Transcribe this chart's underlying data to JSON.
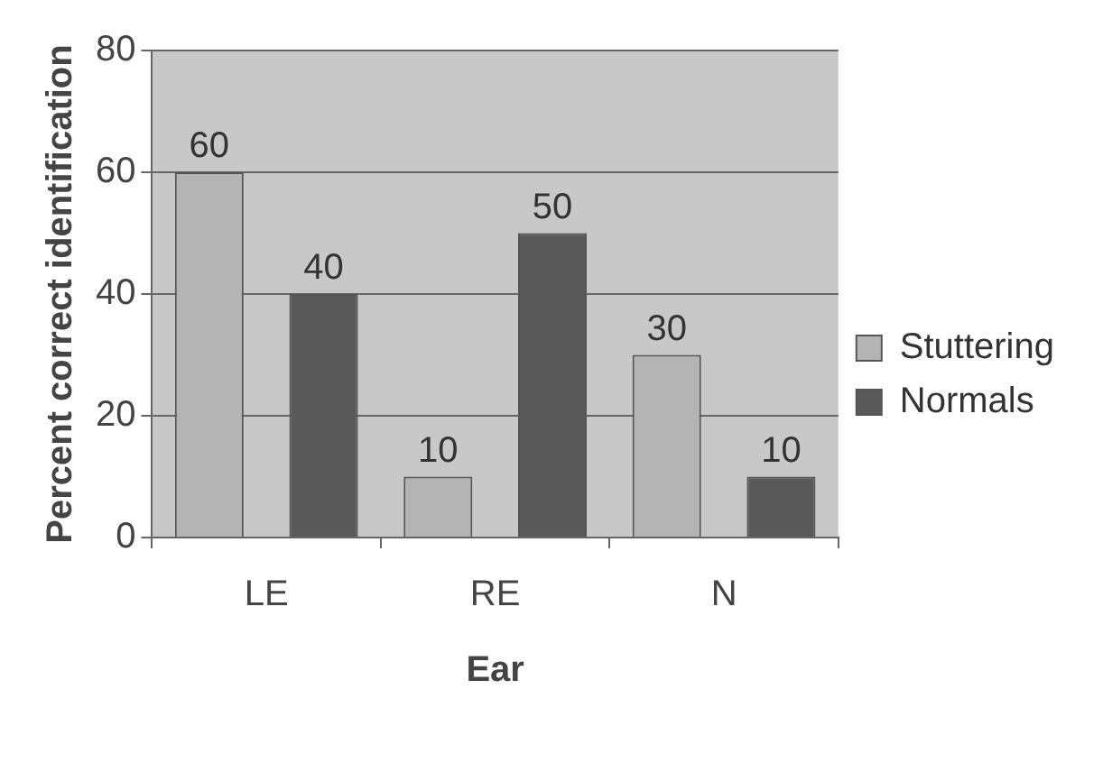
{
  "chart_data": {
    "type": "bar",
    "xlabel": "Ear",
    "ylabel": "Percent correct identification",
    "categories": [
      "LE",
      "RE",
      "N"
    ],
    "series": [
      {
        "name": "Stuttering",
        "color": "#b4b4b4",
        "values": [
          60,
          10,
          30
        ]
      },
      {
        "name": "Normals",
        "color": "#595959",
        "values": [
          40,
          50,
          10
        ]
      }
    ],
    "ylim": [
      0,
      80
    ],
    "yticks": [
      0,
      20,
      40,
      60,
      80
    ],
    "grid": "y",
    "legend": "right",
    "data_labels": true
  }
}
